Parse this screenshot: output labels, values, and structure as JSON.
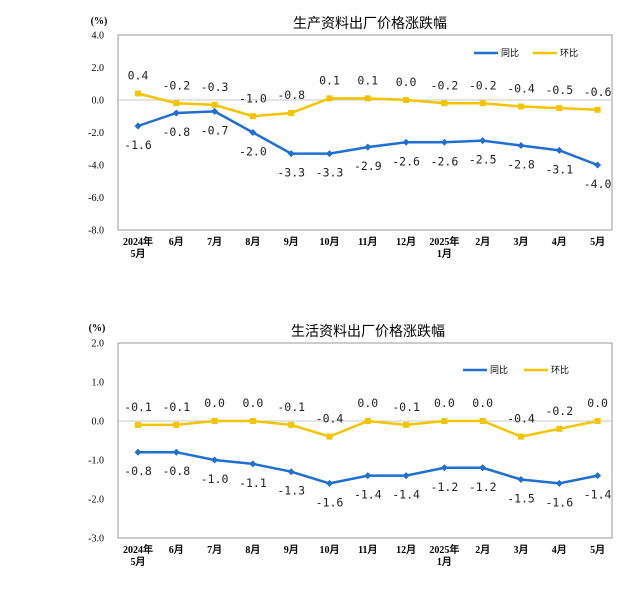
{
  "chart_data": [
    {
      "type": "line",
      "title": "生产资料出厂价格涨跌幅",
      "unit": "(%)",
      "categories": [
        [
          "2024年",
          "5月"
        ],
        [
          "6月"
        ],
        [
          "7月"
        ],
        [
          "8月"
        ],
        [
          "9月"
        ],
        [
          "10月"
        ],
        [
          "11月"
        ],
        [
          "12月"
        ],
        [
          "2025年",
          "1月"
        ],
        [
          "2月"
        ],
        [
          "3月"
        ],
        [
          "4月"
        ],
        [
          "5月"
        ]
      ],
      "ylim": [
        -8.0,
        4.0
      ],
      "yticks": [
        "4.0",
        "2.0",
        "0.0",
        "-2.0",
        "-4.0",
        "-6.0",
        "-8.0"
      ],
      "ytick_values": [
        4,
        2,
        0,
        -2,
        -4,
        -6,
        -8
      ],
      "grid": false,
      "legend_position": "top-right",
      "series": [
        {
          "name": "同比",
          "color": "#1f6fd1",
          "marker": "diamond",
          "values": [
            -1.6,
            -0.8,
            -0.7,
            -2.0,
            -3.3,
            -3.3,
            -2.9,
            -2.6,
            -2.6,
            -2.5,
            -2.8,
            -3.1,
            -4.0
          ],
          "labels": [
            "-1.6",
            "-0.8",
            "-0.7",
            "-2.0",
            "-3.3",
            "-3.3",
            "-2.9",
            "-2.6",
            "-2.6",
            "-2.5",
            "-2.8",
            "-3.1",
            "-4.0"
          ]
        },
        {
          "name": "环比",
          "color": "#f5c400",
          "marker": "square",
          "values": [
            0.4,
            -0.2,
            -0.3,
            -1.0,
            -0.8,
            0.1,
            0.1,
            0.0,
            -0.2,
            -0.2,
            -0.4,
            -0.5,
            -0.6
          ],
          "labels": [
            "0.4",
            "-0.2",
            "-0.3",
            "-1.0",
            "-0.8",
            "0.1",
            "0.1",
            "0.0",
            "-0.2",
            "-0.2",
            "-0.4",
            "-0.5",
            "-0.6"
          ]
        }
      ]
    },
    {
      "type": "line",
      "title": "生活资料出厂价格涨跌幅",
      "unit": "(%)",
      "categories": [
        [
          "2024年",
          "5月"
        ],
        [
          "6月"
        ],
        [
          "7月"
        ],
        [
          "8月"
        ],
        [
          "9月"
        ],
        [
          "10月"
        ],
        [
          "11月"
        ],
        [
          "12月"
        ],
        [
          "2025年",
          "1月"
        ],
        [
          "2月"
        ],
        [
          "3月"
        ],
        [
          "4月"
        ],
        [
          "5月"
        ]
      ],
      "ylim": [
        -3.0,
        2.0
      ],
      "yticks": [
        "2.0",
        "1.0",
        "0.0",
        "-1.0",
        "-2.0",
        "-3.0"
      ],
      "ytick_values": [
        2,
        1,
        0,
        -1,
        -2,
        -3
      ],
      "grid": false,
      "legend_position": "top-right",
      "series": [
        {
          "name": "同比",
          "color": "#1f6fd1",
          "marker": "diamond",
          "values": [
            -0.8,
            -0.8,
            -1.0,
            -1.1,
            -1.3,
            -1.6,
            -1.4,
            -1.4,
            -1.2,
            -1.2,
            -1.5,
            -1.6,
            -1.4
          ],
          "labels": [
            "-0.8",
            "-0.8",
            "-1.0",
            "-1.1",
            "-1.3",
            "-1.6",
            "-1.4",
            "-1.4",
            "-1.2",
            "-1.2",
            "-1.5",
            "-1.6",
            "-1.4"
          ]
        },
        {
          "name": "环比",
          "color": "#f5c400",
          "marker": "square",
          "values": [
            -0.1,
            -0.1,
            0.0,
            0.0,
            -0.1,
            -0.4,
            0.0,
            -0.1,
            0.0,
            0.0,
            -0.4,
            -0.2,
            0.0
          ],
          "labels": [
            "-0.1",
            "-0.1",
            "0.0",
            "0.0",
            "-0.1",
            "-0.4",
            "0.0",
            "-0.1",
            "0.0",
            "0.0",
            "-0.4",
            "-0.2",
            "0.0"
          ]
        }
      ]
    }
  ]
}
